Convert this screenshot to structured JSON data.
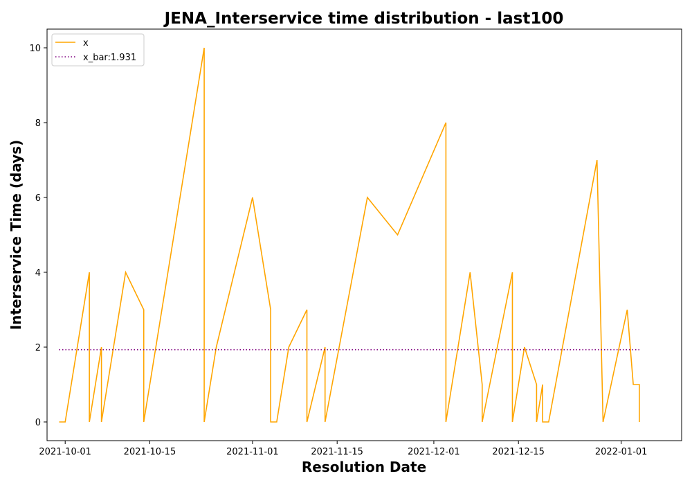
{
  "chart_data": {
    "type": "line",
    "title": "JENA_Interservice time distribution - last100",
    "xlabel": "Resolution Date",
    "ylabel": "Interservice Time (days)",
    "xlim": [
      "2021-09-28",
      "2022-01-11"
    ],
    "ylim": [
      -0.5,
      10.5
    ],
    "x_ticks": [
      "2021-10-01",
      "2021-10-15",
      "2021-11-01",
      "2021-11-15",
      "2021-12-01",
      "2021-12-15",
      "2022-01-01"
    ],
    "y_ticks": [
      0,
      2,
      4,
      6,
      8,
      10
    ],
    "grid": false,
    "legend_position": "top-left",
    "series": [
      {
        "name": "x",
        "color": "#ffa500",
        "style": "solid",
        "points": [
          [
            "2021-09-30",
            0
          ],
          [
            "2021-10-01",
            0
          ],
          [
            "2021-10-05",
            4
          ],
          [
            "2021-10-05",
            0
          ],
          [
            "2021-10-07",
            2
          ],
          [
            "2021-10-07",
            0
          ],
          [
            "2021-10-11",
            4
          ],
          [
            "2021-10-14",
            3
          ],
          [
            "2021-10-14",
            0
          ],
          [
            "2021-10-24",
            10
          ],
          [
            "2021-10-24",
            0
          ],
          [
            "2021-10-26",
            2
          ],
          [
            "2021-11-01",
            6
          ],
          [
            "2021-11-04",
            3
          ],
          [
            "2021-11-04",
            0
          ],
          [
            "2021-11-05",
            0
          ],
          [
            "2021-11-07",
            2
          ],
          [
            "2021-11-10",
            3
          ],
          [
            "2021-11-10",
            0
          ],
          [
            "2021-11-13",
            2
          ],
          [
            "2021-11-13",
            0
          ],
          [
            "2021-11-20",
            6
          ],
          [
            "2021-11-25",
            5
          ],
          [
            "2021-12-03",
            8
          ],
          [
            "2021-12-03",
            0
          ],
          [
            "2021-12-07",
            4
          ],
          [
            "2021-12-09",
            1
          ],
          [
            "2021-12-09",
            0
          ],
          [
            "2021-12-14",
            4
          ],
          [
            "2021-12-14",
            0
          ],
          [
            "2021-12-16",
            2
          ],
          [
            "2021-12-18",
            1
          ],
          [
            "2021-12-18",
            0
          ],
          [
            "2021-12-19",
            1
          ],
          [
            "2021-12-19",
            0
          ],
          [
            "2021-12-20",
            0
          ],
          [
            "2021-12-28",
            7
          ],
          [
            "2021-12-29",
            0
          ],
          [
            "2022-01-02",
            3
          ],
          [
            "2022-01-03",
            1
          ],
          [
            "2022-01-04",
            1
          ],
          [
            "2022-01-04",
            0
          ]
        ]
      },
      {
        "name": "x_bar:1.931",
        "color": "#800080",
        "style": "dotted",
        "points": [
          [
            "2021-09-30",
            1.931
          ],
          [
            "2022-01-04",
            1.931
          ]
        ]
      }
    ]
  }
}
